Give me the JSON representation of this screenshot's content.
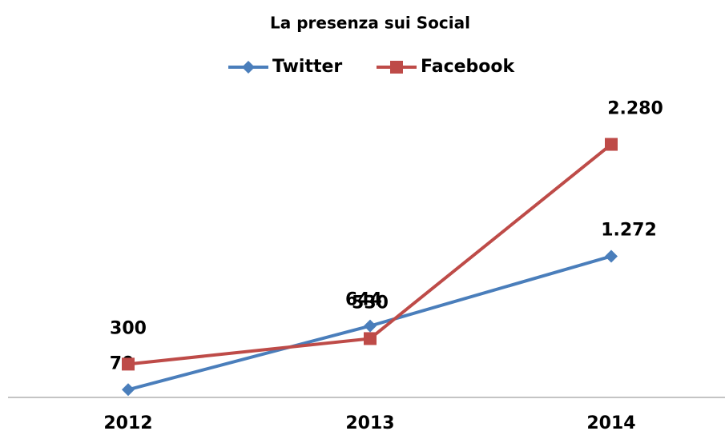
{
  "chart_data": {
    "type": "line",
    "title": "La presenza sui Social",
    "categories": [
      "2012",
      "2013",
      "2014"
    ],
    "series": [
      {
        "name": "Twitter",
        "color": "#4a7ebb",
        "marker": "diamond",
        "values": [
          70,
          644,
          1272
        ],
        "value_labels": [
          "70",
          "644",
          "1.272"
        ]
      },
      {
        "name": "Facebook",
        "color": "#be4b48",
        "marker": "square",
        "values": [
          300,
          530,
          2280
        ],
        "value_labels": [
          "300",
          "530",
          "2.280"
        ]
      }
    ],
    "ylim": [
      0,
      2500
    ],
    "legend": "top"
  }
}
